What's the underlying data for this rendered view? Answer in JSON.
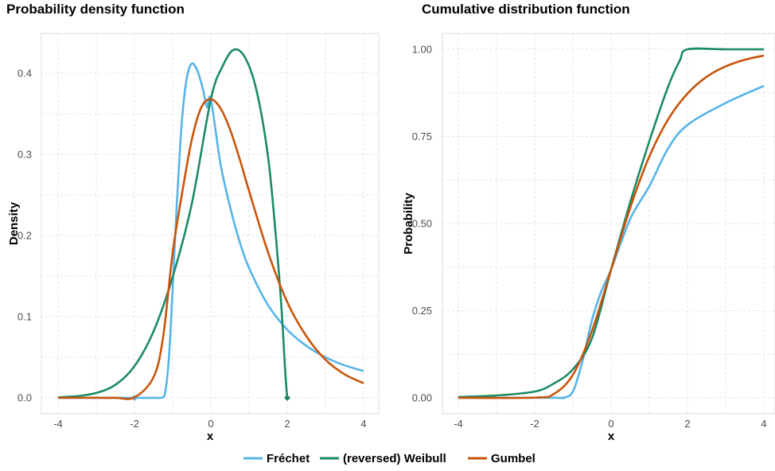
{
  "chart_data": [
    {
      "type": "line",
      "title": "Probability density function",
      "xlabel": "x",
      "ylabel": "Density",
      "xlim": [
        -4,
        4
      ],
      "ylim": [
        0,
        0.43
      ],
      "xticks": [
        -4,
        -2,
        0,
        2,
        4
      ],
      "yticks": [
        0.0,
        0.1,
        0.2,
        0.3,
        0.4
      ],
      "ytick_labels": [
        "0.0",
        "0.1",
        "0.2",
        "0.3",
        "0.4"
      ],
      "grid": true,
      "series": [
        {
          "name": "Fréchet",
          "color": "#56B4E9",
          "x": [
            -4,
            -2,
            -1.5,
            -1.3,
            -1.2,
            -1.1,
            -1.0,
            -0.9,
            -0.8,
            -0.7,
            -0.6,
            -0.5,
            -0.4,
            -0.3,
            -0.2,
            -0.1,
            0.0,
            0.25,
            0.5,
            0.75,
            1.0,
            1.5,
            2.0,
            2.5,
            3.0,
            3.5,
            4.0
          ],
          "y": [
            0,
            0,
            0,
            0.0002,
            0.006,
            0.048,
            0.135,
            0.232,
            0.314,
            0.37,
            0.401,
            0.412,
            0.408,
            0.396,
            0.379,
            0.358,
            0.368,
            0.289,
            0.236,
            0.193,
            0.16,
            0.114,
            0.084,
            0.064,
            0.05,
            0.04,
            0.033
          ],
          "markers": [
            {
              "x": -2,
              "y": 0
            }
          ]
        },
        {
          "name": "(reversed) Weibull",
          "color": "#1B8A66",
          "x": [
            -4,
            -3.5,
            -3.0,
            -2.5,
            -2.0,
            -1.5,
            -1.0,
            -0.5,
            0.0,
            0.3,
            0.6,
            0.9,
            1.2,
            1.5,
            1.7,
            1.85,
            1.95,
            2.0
          ],
          "y": [
            0.0006,
            0.002,
            0.006,
            0.016,
            0.039,
            0.082,
            0.149,
            0.239,
            0.368,
            0.408,
            0.429,
            0.419,
            0.378,
            0.296,
            0.2,
            0.11,
            0.03,
            0.0
          ],
          "markers": [
            {
              "x": 2,
              "y": 0
            }
          ]
        },
        {
          "name": "Gumbel",
          "color": "#C9540B",
          "x": [
            -4,
            -3.0,
            -2.5,
            -2.0,
            -1.5,
            -1.25,
            -1.0,
            -0.75,
            -0.5,
            -0.25,
            0.0,
            0.25,
            0.5,
            0.75,
            1.0,
            1.5,
            2.0,
            2.5,
            3.0,
            3.5,
            4.0
          ],
          "y": [
            0,
            3.8e-08,
            1e-05,
            0.0005,
            0.0255,
            0.075,
            0.179,
            0.253,
            0.318,
            0.358,
            0.368,
            0.357,
            0.331,
            0.295,
            0.255,
            0.179,
            0.118,
            0.076,
            0.047,
            0.029,
            0.018
          ]
        }
      ]
    },
    {
      "type": "line",
      "title": "Cumulative distribution function",
      "xlabel": "x",
      "ylabel": "Probability",
      "xlim": [
        -4,
        4
      ],
      "ylim": [
        0,
        1
      ],
      "xticks": [
        -4,
        -2,
        0,
        2,
        4
      ],
      "yticks": [
        0.0,
        0.25,
        0.5,
        0.75,
        1.0
      ],
      "ytick_labels": [
        "0.00",
        "0.25",
        "0.50",
        "0.75",
        "1.00"
      ],
      "grid": true,
      "series": [
        {
          "name": "Fréchet",
          "color": "#56B4E9",
          "x": [
            -4,
            -1.5,
            -1.25,
            -1.0,
            -0.75,
            -0.5,
            -0.25,
            0.0,
            0.5,
            1.0,
            1.5,
            2.0,
            3.0,
            4.0
          ],
          "y": [
            0,
            0,
            0.0003,
            0.018,
            0.105,
            0.223,
            0.307,
            0.368,
            0.513,
            0.607,
            0.717,
            0.783,
            0.846,
            0.895
          ]
        },
        {
          "name": "(reversed) Weibull",
          "color": "#1B8A66",
          "x": [
            -4,
            -3,
            -2,
            -1.5,
            -1.0,
            -0.5,
            0.0,
            0.5,
            1.0,
            1.5,
            1.8,
            2.0,
            3.0,
            4.0
          ],
          "y": [
            0.0025,
            0.0067,
            0.018,
            0.041,
            0.082,
            0.171,
            0.368,
            0.561,
            0.736,
            0.895,
            0.968,
            1.0,
            1.0,
            1.0
          ]
        },
        {
          "name": "Gumbel",
          "color": "#C9540B",
          "x": [
            -4,
            -2.0,
            -1.5,
            -1.0,
            -0.5,
            0.0,
            0.5,
            1.0,
            1.5,
            2.0,
            2.5,
            3.0,
            3.5,
            4.0
          ],
          "y": [
            0,
            0.0006,
            0.011,
            0.066,
            0.192,
            0.368,
            0.545,
            0.692,
            0.8,
            0.873,
            0.921,
            0.951,
            0.97,
            0.982
          ]
        }
      ]
    }
  ],
  "legend": {
    "placement": "bottom",
    "items": [
      {
        "label": "Fréchet",
        "color": "#56B4E9"
      },
      {
        "label": "(reversed) Weibull",
        "color": "#1B8A66"
      },
      {
        "label": "Gumbel",
        "color": "#C9540B"
      }
    ]
  }
}
